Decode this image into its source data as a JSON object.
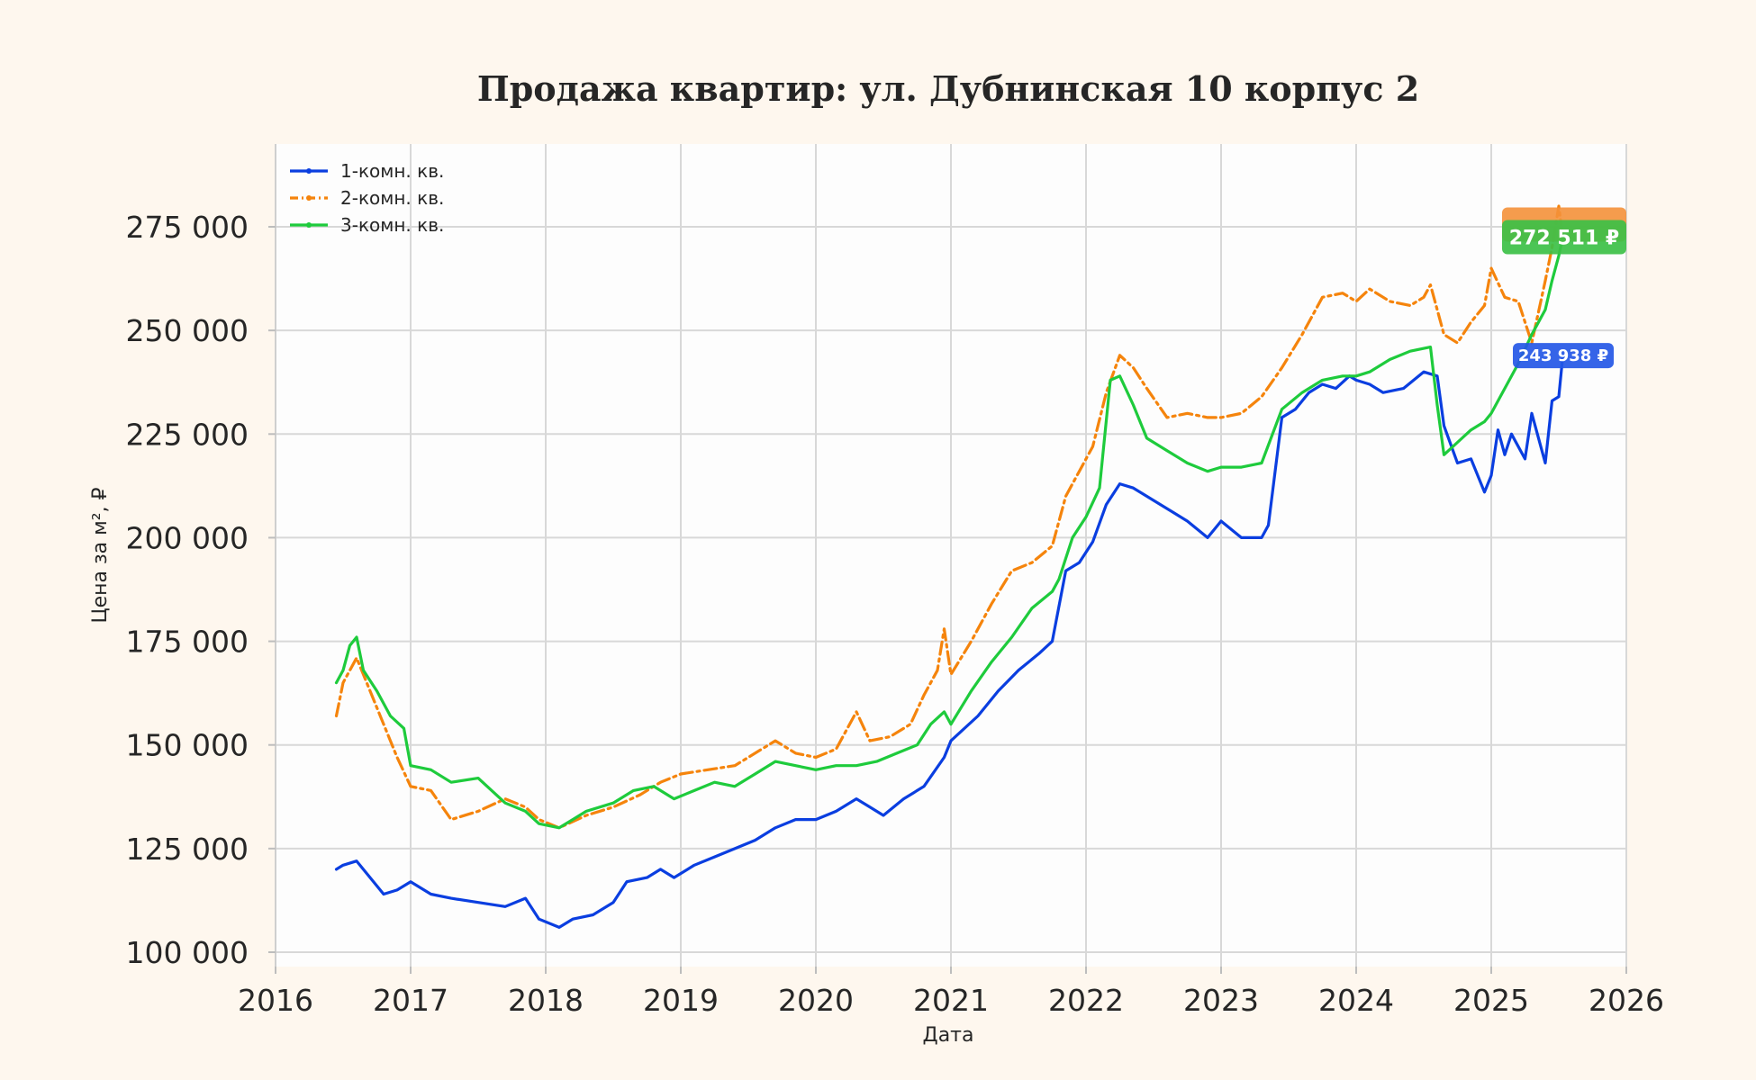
{
  "chart_data": {
    "type": "line",
    "title": "Продажа квартир: ул. Дубнинская 10 корпус 2",
    "xlabel": "Дата",
    "ylabel": "Цена за м², ₽",
    "xlim": [
      2016,
      2026
    ],
    "ylim": [
      100000,
      280000
    ],
    "x_ticks": [
      "2016",
      "2017",
      "2018",
      "2019",
      "2020",
      "2021",
      "2022",
      "2023",
      "2024",
      "2025",
      "2026"
    ],
    "y_ticks": [
      {
        "value": 100000,
        "label": "100 000"
      },
      {
        "value": 125000,
        "label": "125 000"
      },
      {
        "value": 150000,
        "label": "150 000"
      },
      {
        "value": 175000,
        "label": "175 000"
      },
      {
        "value": 200000,
        "label": "200 000"
      },
      {
        "value": 225000,
        "label": "225 000"
      },
      {
        "value": 250000,
        "label": "250 000"
      },
      {
        "value": 275000,
        "label": "275 000"
      }
    ],
    "grid": true,
    "legend_position": "top-left",
    "series": [
      {
        "name": "1-комн. кв.",
        "color": "#0a3ee0",
        "dash": "solid",
        "end_label": "243 938 ₽",
        "x": [
          2016.45,
          2016.5,
          2016.6,
          2016.7,
          2016.8,
          2016.9,
          2017.0,
          2017.15,
          2017.3,
          2017.5,
          2017.7,
          2017.85,
          2017.95,
          2018.1,
          2018.2,
          2018.35,
          2018.5,
          2018.6,
          2018.75,
          2018.85,
          2018.95,
          2019.1,
          2019.25,
          2019.4,
          2019.55,
          2019.7,
          2019.85,
          2020.0,
          2020.15,
          2020.3,
          2020.4,
          2020.5,
          2020.65,
          2020.8,
          2020.95,
          2021.0,
          2021.2,
          2021.35,
          2021.5,
          2021.65,
          2021.75,
          2021.85,
          2021.95,
          2022.05,
          2022.15,
          2022.25,
          2022.35,
          2022.5,
          2022.65,
          2022.75,
          2022.9,
          2023.0,
          2023.15,
          2023.3,
          2023.35,
          2023.45,
          2023.55,
          2023.65,
          2023.75,
          2023.85,
          2023.95,
          2024.0,
          2024.1,
          2024.2,
          2024.35,
          2024.5,
          2024.6,
          2024.65,
          2024.75,
          2024.85,
          2024.95,
          2025.0,
          2025.05,
          2025.1,
          2025.15,
          2025.25,
          2025.3,
          2025.4,
          2025.45,
          2025.5,
          2025.53
        ],
        "y": [
          120000,
          121000,
          122000,
          118000,
          114000,
          115000,
          117000,
          114000,
          113000,
          112000,
          111000,
          113000,
          108000,
          106000,
          108000,
          109000,
          112000,
          117000,
          118000,
          120000,
          118000,
          121000,
          123000,
          125000,
          127000,
          130000,
          132000,
          132000,
          134000,
          137000,
          135000,
          133000,
          137000,
          140000,
          147000,
          151000,
          157000,
          163000,
          168000,
          172000,
          175000,
          192000,
          194000,
          199000,
          208000,
          213000,
          212000,
          209000,
          206000,
          204000,
          200000,
          204000,
          200000,
          200000,
          203000,
          229000,
          231000,
          235000,
          237000,
          236000,
          239000,
          238000,
          237000,
          235000,
          236000,
          240000,
          239000,
          227000,
          218000,
          219000,
          211000,
          215000,
          226000,
          220000,
          225000,
          219000,
          230000,
          218000,
          233000,
          234000,
          243938
        ]
      },
      {
        "name": "2-комн. кв.",
        "color": "#f5840c",
        "dash": "dashdot",
        "end_label": "272 511 ₽",
        "x": [
          2016.45,
          2016.5,
          2016.55,
          2016.6,
          2016.7,
          2016.8,
          2016.9,
          2017.0,
          2017.15,
          2017.3,
          2017.5,
          2017.7,
          2017.85,
          2017.95,
          2018.1,
          2018.3,
          2018.5,
          2018.7,
          2018.85,
          2019.0,
          2019.2,
          2019.4,
          2019.55,
          2019.7,
          2019.85,
          2020.0,
          2020.15,
          2020.3,
          2020.4,
          2020.55,
          2020.7,
          2020.8,
          2020.9,
          2020.95,
          2021.0,
          2021.15,
          2021.3,
          2021.45,
          2021.6,
          2021.75,
          2021.85,
          2021.95,
          2022.05,
          2022.15,
          2022.25,
          2022.35,
          2022.45,
          2022.6,
          2022.75,
          2022.9,
          2023.0,
          2023.15,
          2023.3,
          2023.45,
          2023.6,
          2023.75,
          2023.9,
          2024.0,
          2024.1,
          2024.25,
          2024.4,
          2024.5,
          2024.55,
          2024.65,
          2024.75,
          2024.85,
          2024.95,
          2025.0,
          2025.1,
          2025.2,
          2025.3,
          2025.4,
          2025.45,
          2025.5,
          2025.53
        ],
        "y": [
          157000,
          165000,
          168000,
          171000,
          163000,
          155000,
          147000,
          140000,
          139000,
          132000,
          134000,
          137000,
          135000,
          132000,
          130000,
          133000,
          135000,
          138000,
          141000,
          143000,
          144000,
          145000,
          148000,
          151000,
          148000,
          147000,
          149000,
          158000,
          151000,
          152000,
          155000,
          162000,
          168000,
          178000,
          167000,
          175000,
          184000,
          192000,
          194000,
          198000,
          210000,
          216000,
          222000,
          235000,
          244000,
          241000,
          236000,
          229000,
          230000,
          229000,
          229000,
          230000,
          234000,
          241000,
          249000,
          258000,
          259000,
          257000,
          260000,
          257000,
          256000,
          258000,
          261000,
          249000,
          247000,
          252000,
          256000,
          265000,
          258000,
          257000,
          247000,
          262000,
          270000,
          280000,
          272511
        ]
      },
      {
        "name": "3-комн. кв.",
        "color": "#1ecb3c",
        "dash": "solid",
        "end_label": "",
        "x": [
          2016.45,
          2016.5,
          2016.55,
          2016.6,
          2016.65,
          2016.75,
          2016.85,
          2016.95,
          2017.0,
          2017.15,
          2017.3,
          2017.5,
          2017.7,
          2017.85,
          2017.95,
          2018.1,
          2018.3,
          2018.5,
          2018.65,
          2018.8,
          2018.95,
          2019.1,
          2019.25,
          2019.4,
          2019.55,
          2019.7,
          2019.85,
          2020.0,
          2020.15,
          2020.3,
          2020.45,
          2020.6,
          2020.75,
          2020.85,
          2020.95,
          2021.0,
          2021.15,
          2021.3,
          2021.45,
          2021.6,
          2021.75,
          2021.8,
          2021.9,
          2022.0,
          2022.1,
          2022.18,
          2022.25,
          2022.35,
          2022.45,
          2022.6,
          2022.75,
          2022.9,
          2023.0,
          2023.15,
          2023.3,
          2023.45,
          2023.6,
          2023.75,
          2023.9,
          2024.0,
          2024.1,
          2024.25,
          2024.4,
          2024.55,
          2024.6,
          2024.65,
          2024.75,
          2024.85,
          2024.95,
          2025.0,
          2025.1,
          2025.2,
          2025.3,
          2025.4,
          2025.45,
          2025.5,
          2025.53
        ],
        "y": [
          165000,
          168000,
          174000,
          176000,
          168000,
          163000,
          157000,
          154000,
          145000,
          144000,
          141000,
          142000,
          136000,
          134000,
          131000,
          130000,
          134000,
          136000,
          139000,
          140000,
          137000,
          139000,
          141000,
          140000,
          143000,
          146000,
          145000,
          144000,
          145000,
          145000,
          146000,
          148000,
          150000,
          155000,
          158000,
          155000,
          163000,
          170000,
          176000,
          183000,
          187000,
          190000,
          200000,
          205000,
          212000,
          238000,
          239000,
          232000,
          224000,
          221000,
          218000,
          216000,
          217000,
          217000,
          218000,
          231000,
          235000,
          238000,
          239000,
          239000,
          240000,
          243000,
          245000,
          246000,
          232000,
          220000,
          223000,
          226000,
          228000,
          230000,
          236000,
          242000,
          249000,
          255000,
          262000,
          268000,
          272511
        ]
      }
    ]
  }
}
